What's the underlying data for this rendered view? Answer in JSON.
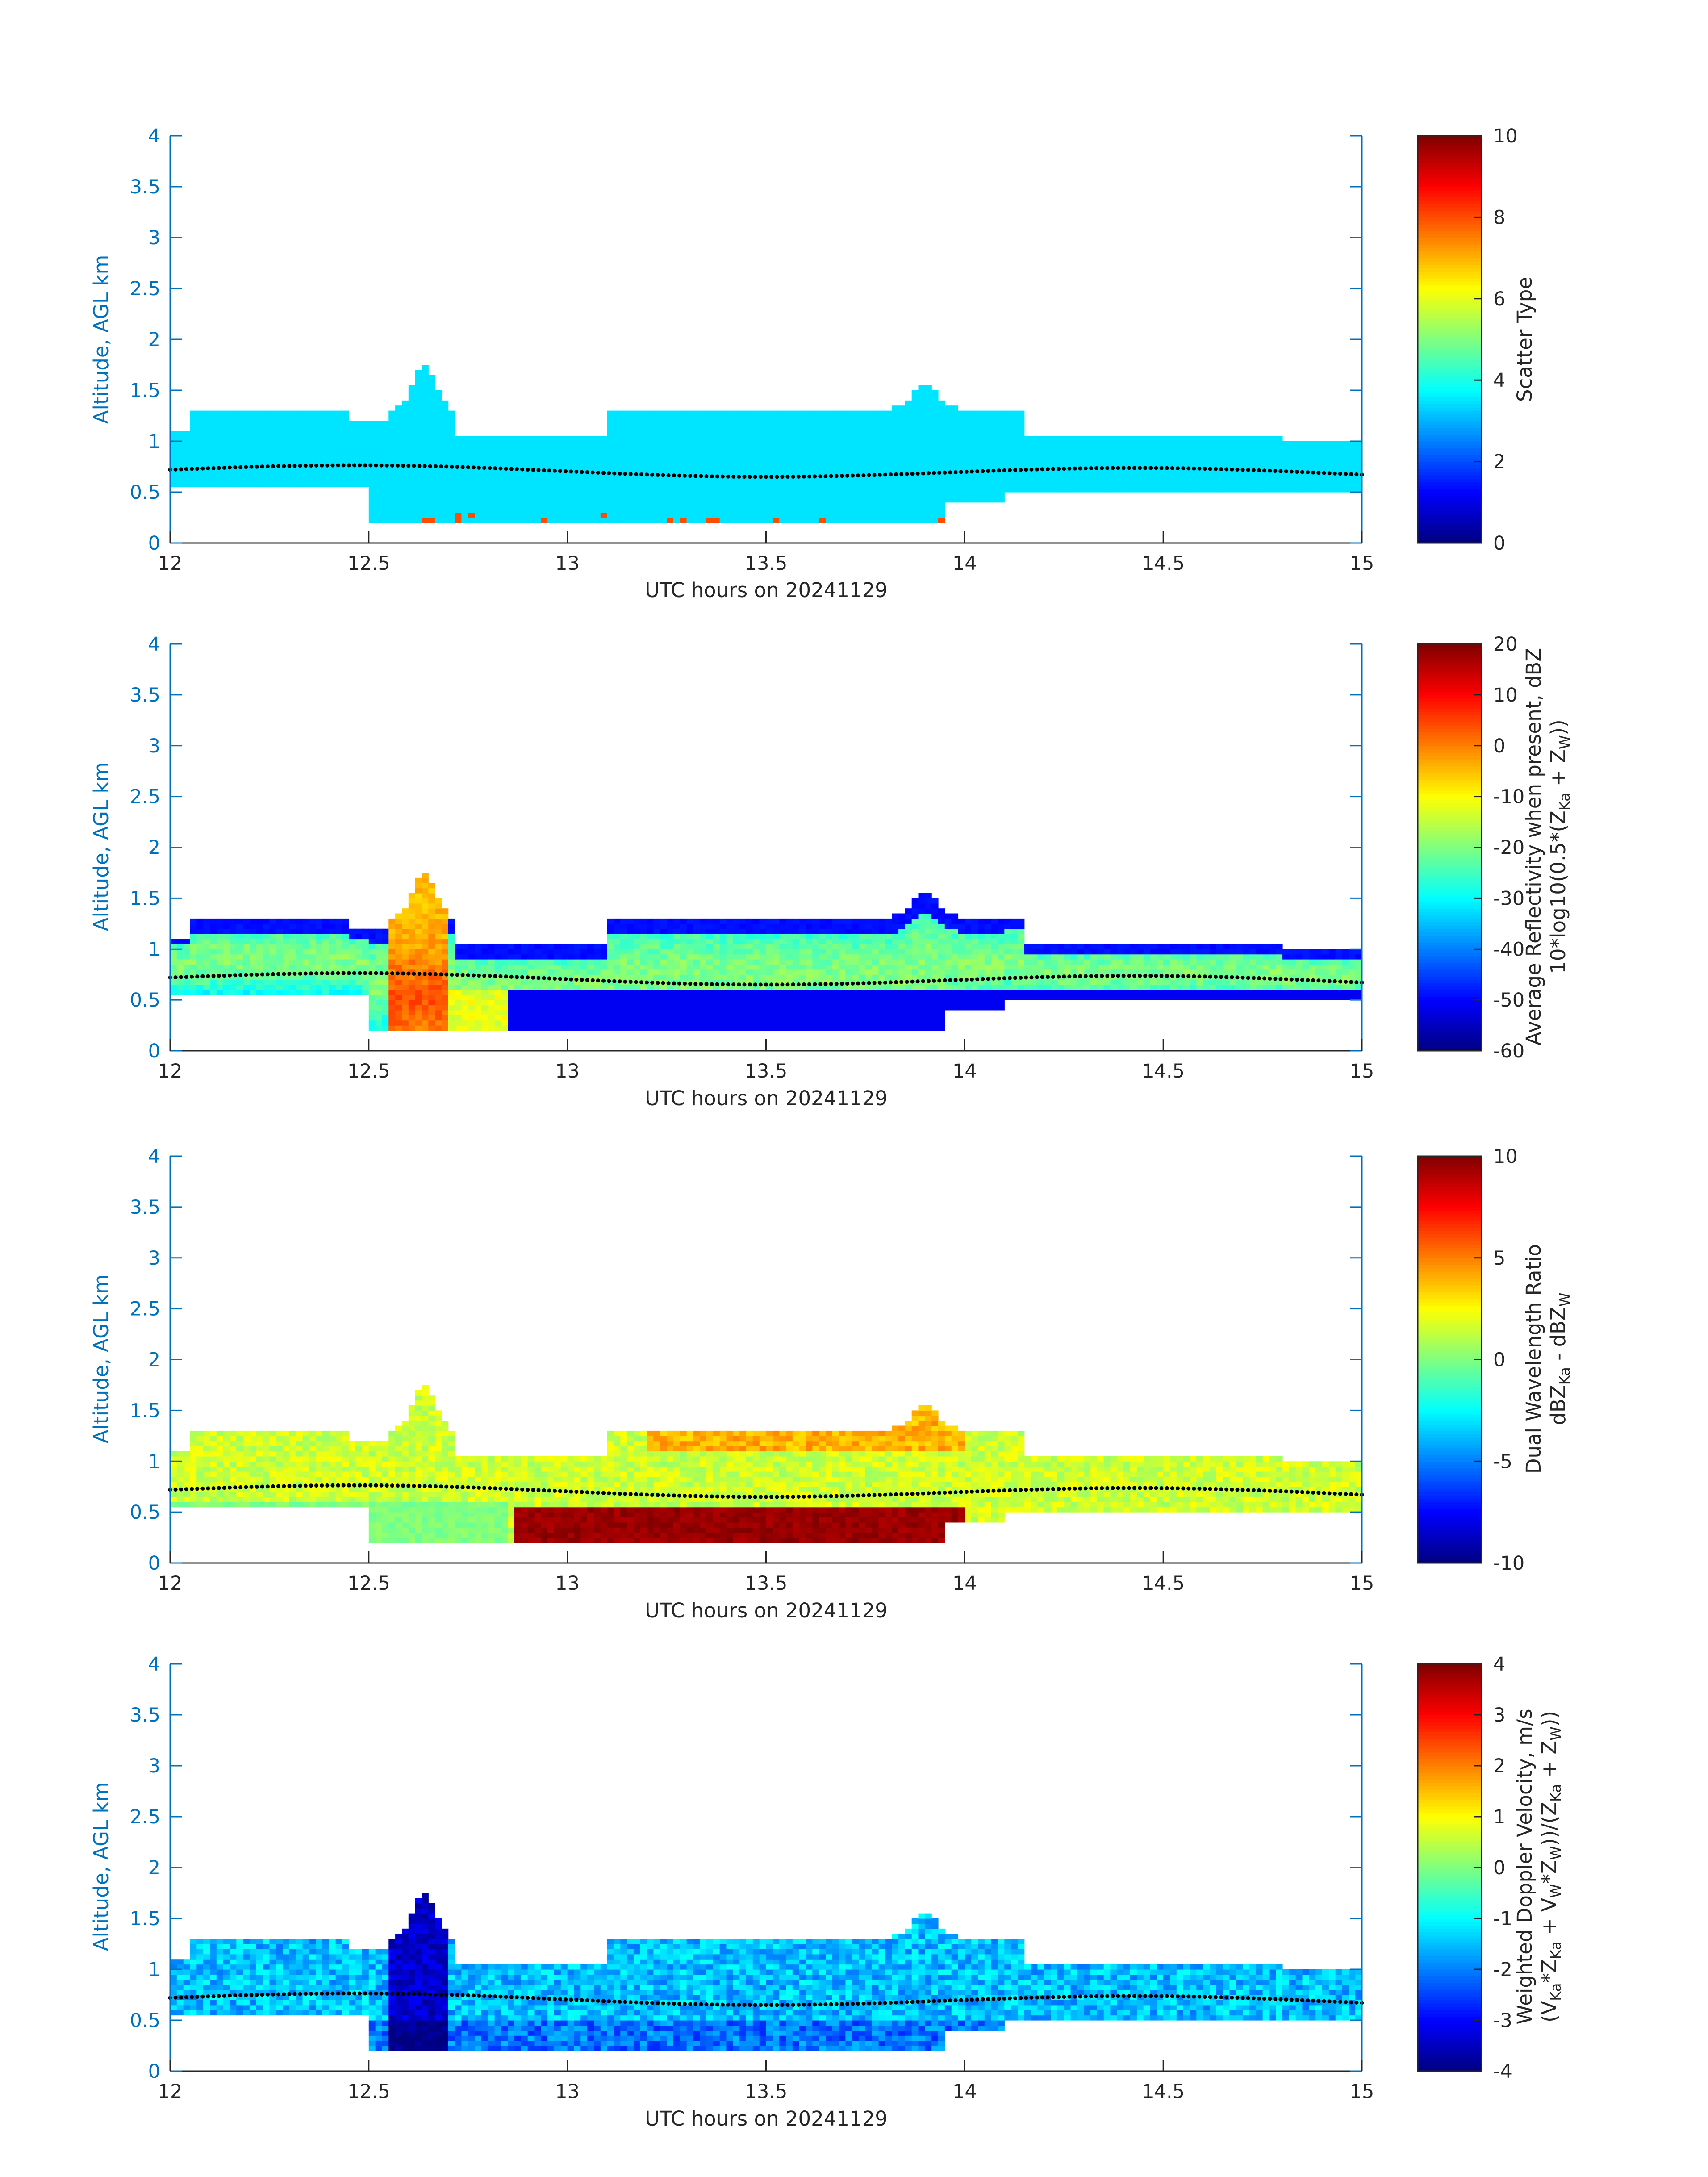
{
  "figure": {
    "xlabel": "UTC hours on 20241129",
    "ylabel": "Altitude, AGL km",
    "x_ticks": [
      "12",
      "12.5",
      "13",
      "13.5",
      "14",
      "14.5",
      "15"
    ],
    "y_ticks": [
      "0",
      "0.5",
      "1",
      "1.5",
      "2",
      "2.5",
      "3",
      "3.5",
      "4"
    ],
    "axis_color": "#0072bd",
    "label_color": "#262626"
  },
  "chart_data": [
    {
      "type": "heatmap",
      "field": "scatter_type",
      "xlabel": "UTC hours on 20241129",
      "ylabel": "Altitude, AGL km",
      "xlim": [
        12,
        15
      ],
      "ylim": [
        0,
        4
      ],
      "colorbar": {
        "label_lines": [
          "Scatter Type"
        ],
        "ticks": [
          "0",
          "2",
          "4",
          "6",
          "8",
          "10"
        ],
        "range": [
          0,
          10
        ]
      },
      "colormap": "jet",
      "dominant_value": 3.5,
      "secondary_value": 8,
      "mlh_line": "black dotted, ~0.7 km"
    },
    {
      "type": "heatmap",
      "field": "average_reflectivity",
      "xlabel": "UTC hours on 20241129",
      "ylabel": "Altitude, AGL km",
      "xlim": [
        12,
        15
      ],
      "ylim": [
        0,
        4
      ],
      "colorbar": {
        "label_lines": [
          "Average Reflectivity when present, dBZ",
          "10*log10(0.5*(Z",
          "Ka",
          " + Z",
          "W",
          "))"
        ],
        "ticks": [
          "-60",
          "-50",
          "-40",
          "-30",
          "-20",
          "-10",
          "0",
          "10",
          "20"
        ],
        "range": [
          -60,
          20
        ]
      },
      "colormap": "jet"
    },
    {
      "type": "heatmap",
      "field": "dual_wavelength_ratio",
      "xlabel": "UTC hours on 20241129",
      "ylabel": "Altitude, AGL km",
      "xlim": [
        12,
        15
      ],
      "ylim": [
        0,
        4
      ],
      "colorbar": {
        "label_lines": [
          "Dual Wavelength Ratio",
          "dBZ",
          "Ka",
          " - dBZ",
          "W"
        ],
        "ticks": [
          "-10",
          "-5",
          "0",
          "5",
          "10"
        ],
        "range": [
          -10,
          10
        ]
      },
      "colormap": "jet"
    },
    {
      "type": "heatmap",
      "field": "weighted_doppler_velocity",
      "xlabel": "UTC hours on 20241129",
      "ylabel": "Altitude, AGL km",
      "xlim": [
        12,
        15
      ],
      "ylim": [
        0,
        4
      ],
      "colorbar": {
        "label_lines": [
          "Weighted Doppler Velocity, m/s",
          "(V",
          "Ka",
          "*Z",
          "Ka",
          " + V",
          "W",
          "*Z",
          "W",
          "))/(Z",
          "Ka",
          " + Z",
          "W",
          "))"
        ],
        "ticks": [
          "-4",
          "-3",
          "-2",
          "-1",
          "0",
          "1",
          "2",
          "3",
          "4"
        ],
        "range": [
          -4,
          4
        ]
      },
      "colormap": "jet"
    }
  ]
}
